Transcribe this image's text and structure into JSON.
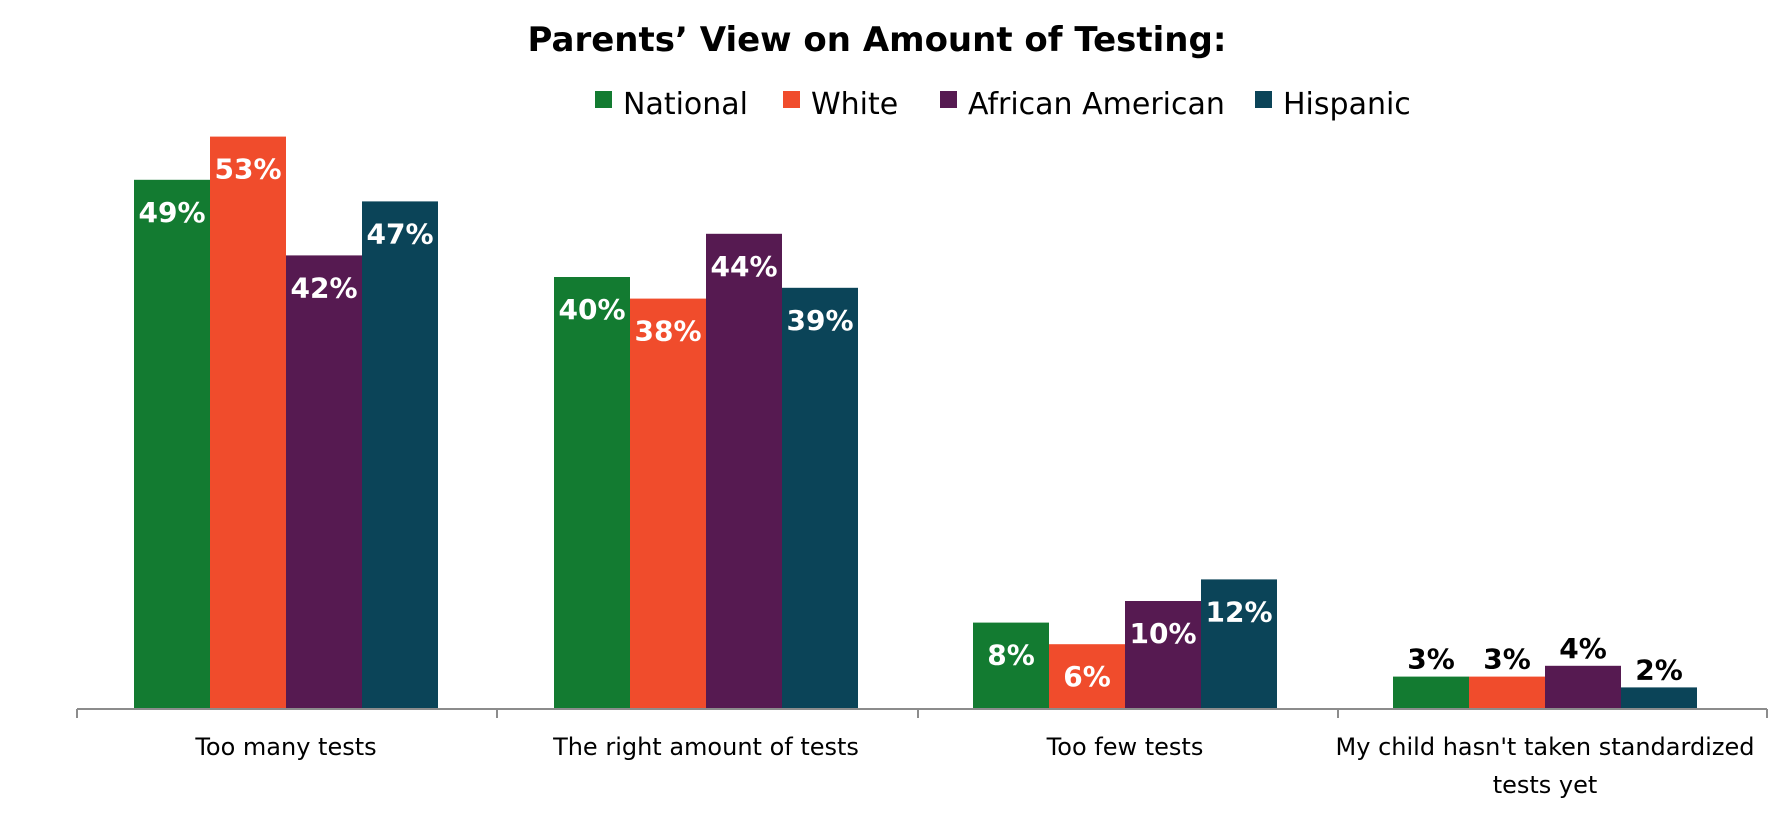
{
  "chart_data": {
    "type": "bar",
    "title": "Parents’ View on Amount of Testing:",
    "xlabel": "",
    "ylabel": "",
    "ylim": [
      0,
      55
    ],
    "grid": false,
    "legend": "top",
    "categories": [
      "Too many tests",
      "The right amount of tests",
      "Too few  tests",
      "My child hasn't taken standardized tests yet"
    ],
    "series": [
      {
        "name": "National",
        "color": "#137B31",
        "values": [
          49,
          40,
          8,
          3
        ],
        "labels": [
          "49%",
          "40%",
          "8%",
          "3%"
        ]
      },
      {
        "name": "White",
        "color": "#F04C2C",
        "values": [
          53,
          38,
          6,
          3
        ],
        "labels": [
          "53%",
          "38%",
          "6%",
          "3%"
        ]
      },
      {
        "name": "African American",
        "color": "#561A51",
        "values": [
          42,
          44,
          10,
          4
        ],
        "labels": [
          "42%",
          "44%",
          "10%",
          "4%"
        ]
      },
      {
        "name": "Hispanic",
        "color": "#0B4458",
        "values": [
          47,
          39,
          12,
          2
        ],
        "labels": [
          "47%",
          "39%",
          "12%",
          "2%"
        ]
      }
    ]
  }
}
